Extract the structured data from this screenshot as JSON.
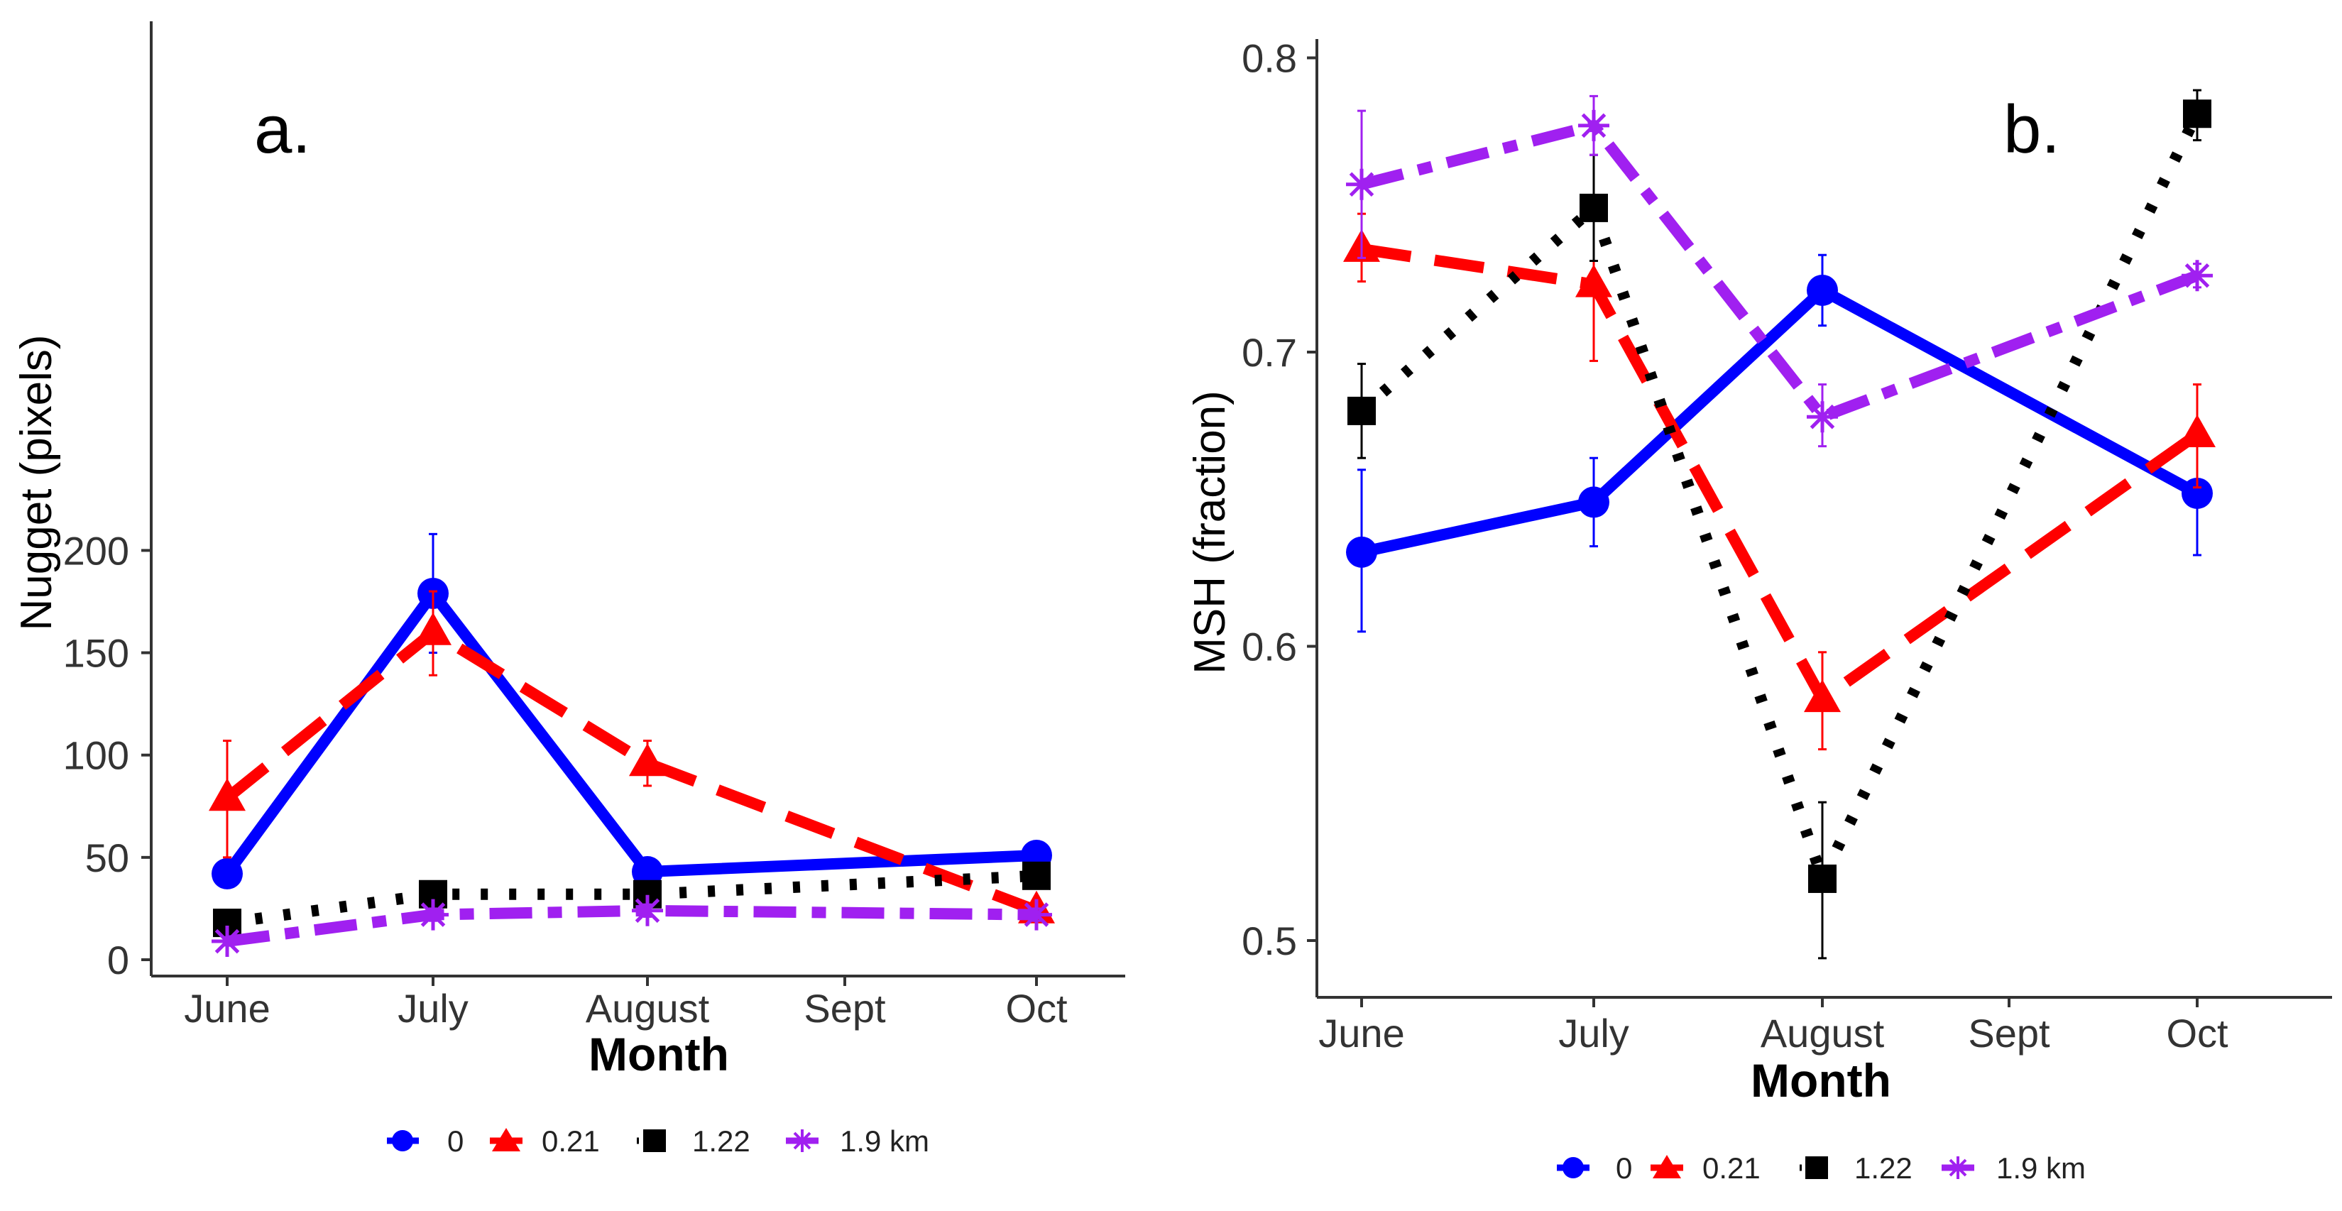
{
  "chart_data": [
    {
      "type": "line",
      "panel_label": "a.",
      "xlabel": "Month",
      "ylabel": "Nugget (pixels)",
      "categories": [
        "June",
        "July",
        "August",
        "Sept",
        "Oct"
      ],
      "ylim": [
        0,
        215
      ],
      "yticks": [
        0,
        50,
        100,
        150,
        200
      ],
      "grid": false,
      "series": [
        {
          "name": "0",
          "color": "#0000ff",
          "marker": "circle",
          "dash": "solid",
          "x": [
            "June",
            "July",
            "August",
            "Oct"
          ],
          "values": [
            42,
            179,
            43,
            51
          ],
          "err_low": [
            38,
            150,
            41,
            49
          ],
          "err_high": [
            46,
            208,
            45,
            53
          ]
        },
        {
          "name": "0.21",
          "color": "#ff0000",
          "marker": "triangle",
          "dash": "longdash",
          "x": [
            "June",
            "July",
            "August",
            "Oct"
          ],
          "values": [
            79,
            160,
            96,
            24
          ],
          "err_low": [
            50,
            139,
            85,
            21
          ],
          "err_high": [
            107,
            180,
            107,
            27
          ]
        },
        {
          "name": "1.22",
          "color": "#000000",
          "marker": "square",
          "dash": "dotted",
          "x": [
            "June",
            "July",
            "August",
            "Oct"
          ],
          "values": [
            18,
            32,
            32,
            41
          ],
          "err_low": [
            14,
            29,
            29,
            38
          ],
          "err_high": [
            22,
            35,
            35,
            44
          ]
        },
        {
          "name": "1.9 km",
          "color": "#a020f0",
          "marker": "asterisk",
          "dash": "dashdot",
          "x": [
            "June",
            "July",
            "August",
            "Oct"
          ],
          "values": [
            9,
            22,
            24,
            22
          ],
          "err_low": [
            7,
            19,
            21,
            19
          ],
          "err_high": [
            11,
            25,
            27,
            25
          ]
        }
      ],
      "legend_position": "bottom"
    },
    {
      "type": "line",
      "panel_label": "b.",
      "xlabel": "Month",
      "ylabel": "MSH (fraction)",
      "categories": [
        "June",
        "July",
        "August",
        "Sept",
        "Oct"
      ],
      "ylim": [
        0.475,
        0.805
      ],
      "yticks": [
        0.5,
        0.6,
        0.7,
        0.8
      ],
      "grid": false,
      "series": [
        {
          "name": "0",
          "color": "#0000ff",
          "marker": "circle",
          "dash": "solid",
          "x": [
            "June",
            "July",
            "August",
            "Oct"
          ],
          "values": [
            0.632,
            0.649,
            0.721,
            0.652
          ],
          "err_low": [
            0.605,
            0.634,
            0.709,
            0.631
          ],
          "err_high": [
            0.66,
            0.664,
            0.733,
            0.672
          ]
        },
        {
          "name": "0.21",
          "color": "#ff0000",
          "marker": "triangle",
          "dash": "longdash",
          "x": [
            "June",
            "July",
            "August",
            "Oct"
          ],
          "values": [
            0.735,
            0.723,
            0.582,
            0.672
          ],
          "err_low": [
            0.724,
            0.697,
            0.565,
            0.654
          ],
          "err_high": [
            0.747,
            0.748,
            0.598,
            0.689
          ]
        },
        {
          "name": "1.22",
          "color": "#000000",
          "marker": "square",
          "dash": "dotted",
          "x": [
            "June",
            "July",
            "August",
            "Oct"
          ],
          "values": [
            0.68,
            0.749,
            0.521,
            0.781
          ],
          "err_low": [
            0.664,
            0.731,
            0.494,
            0.772
          ],
          "err_high": [
            0.696,
            0.767,
            0.547,
            0.789
          ]
        },
        {
          "name": "1.9 km",
          "color": "#a020f0",
          "marker": "asterisk",
          "dash": "dashdot",
          "x": [
            "June",
            "July",
            "August",
            "Oct"
          ],
          "values": [
            0.757,
            0.777,
            0.678,
            0.726
          ],
          "err_low": [
            0.732,
            0.767,
            0.668,
            0.722
          ],
          "err_high": [
            0.782,
            0.787,
            0.689,
            0.73
          ]
        }
      ],
      "legend_position": "bottom"
    }
  ]
}
